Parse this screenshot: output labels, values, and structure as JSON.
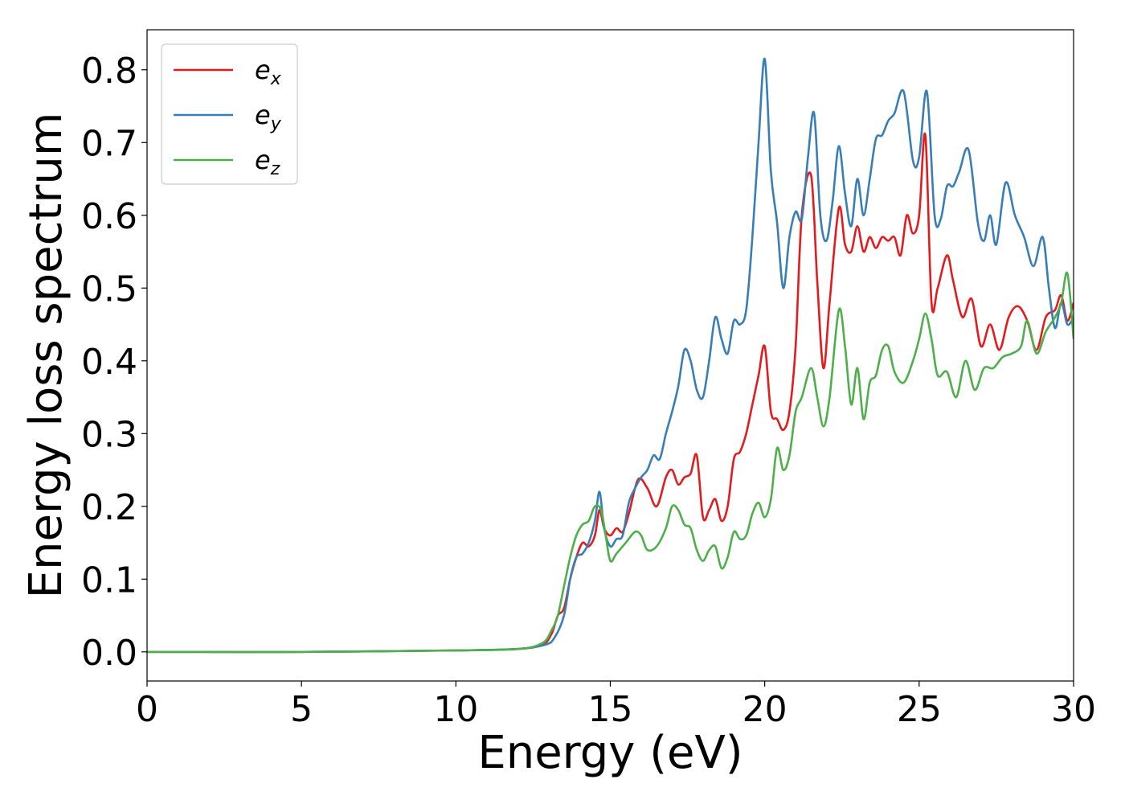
{
  "chart_data": {
    "type": "line",
    "xlabel": "Energy (eV)",
    "ylabel": "Energy loss spectrum",
    "xlim": [
      0,
      30
    ],
    "ylim": [
      -0.04,
      0.855
    ],
    "xticks": [
      0,
      5,
      10,
      15,
      20,
      25,
      30
    ],
    "xtick_labels": [
      "0",
      "5",
      "10",
      "15",
      "20",
      "25",
      "30"
    ],
    "yticks": [
      0.0,
      0.1,
      0.2,
      0.3,
      0.4,
      0.5,
      0.6,
      0.7,
      0.8
    ],
    "ytick_labels": [
      "0.0",
      "0.1",
      "0.2",
      "0.3",
      "0.4",
      "0.5",
      "0.6",
      "0.7",
      "0.8"
    ],
    "grid": false,
    "legend_position": "top-left",
    "series": [
      {
        "name": "e_x",
        "label_base": "e",
        "label_sub": "x",
        "color": "#e41a1c",
        "x": [
          0,
          5,
          10,
          12,
          12.8,
          13.1,
          13.3,
          13.5,
          13.7,
          13.9,
          14.1,
          14.3,
          14.5,
          14.65,
          14.8,
          15.0,
          15.2,
          15.4,
          15.6,
          15.9,
          16.2,
          16.5,
          16.8,
          17.0,
          17.2,
          17.4,
          17.6,
          17.8,
          18.0,
          18.2,
          18.4,
          18.6,
          18.8,
          19.0,
          19.2,
          19.4,
          19.6,
          19.8,
          20.0,
          20.2,
          20.4,
          20.6,
          20.8,
          21.0,
          21.2,
          21.5,
          21.7,
          21.9,
          22.1,
          22.4,
          22.6,
          22.8,
          23.0,
          23.2,
          23.4,
          23.6,
          23.8,
          24.0,
          24.2,
          24.4,
          24.6,
          24.8,
          25.0,
          25.2,
          25.4,
          25.6,
          25.9,
          26.1,
          26.4,
          26.7,
          27.0,
          27.3,
          27.6,
          27.9,
          28.2,
          28.5,
          28.8,
          29.1,
          29.4,
          29.6,
          29.8,
          30.0
        ],
        "y": [
          0.0,
          0.0,
          0.002,
          0.004,
          0.01,
          0.025,
          0.05,
          0.06,
          0.1,
          0.13,
          0.15,
          0.145,
          0.16,
          0.195,
          0.17,
          0.16,
          0.17,
          0.165,
          0.19,
          0.237,
          0.225,
          0.2,
          0.24,
          0.25,
          0.23,
          0.24,
          0.245,
          0.27,
          0.185,
          0.195,
          0.21,
          0.18,
          0.2,
          0.265,
          0.275,
          0.3,
          0.34,
          0.38,
          0.42,
          0.33,
          0.32,
          0.305,
          0.33,
          0.42,
          0.6,
          0.655,
          0.51,
          0.39,
          0.48,
          0.61,
          0.56,
          0.55,
          0.585,
          0.55,
          0.57,
          0.555,
          0.57,
          0.565,
          0.57,
          0.545,
          0.6,
          0.575,
          0.6,
          0.71,
          0.48,
          0.5,
          0.545,
          0.51,
          0.46,
          0.485,
          0.42,
          0.45,
          0.415,
          0.46,
          0.475,
          0.455,
          0.415,
          0.46,
          0.47,
          0.49,
          0.455,
          0.48
        ]
      },
      {
        "name": "e_y",
        "label_base": "e",
        "label_sub": "y",
        "color": "#377eb8",
        "x": [
          0,
          5,
          10,
          12,
          12.9,
          13.2,
          13.5,
          13.7,
          13.9,
          14.1,
          14.3,
          14.5,
          14.65,
          14.8,
          15.0,
          15.2,
          15.4,
          15.6,
          15.8,
          16.0,
          16.2,
          16.4,
          16.6,
          16.8,
          17.0,
          17.2,
          17.4,
          17.6,
          17.8,
          18.0,
          18.2,
          18.4,
          18.6,
          18.8,
          19.0,
          19.2,
          19.4,
          19.6,
          19.8,
          20.0,
          20.2,
          20.4,
          20.6,
          20.8,
          21.0,
          21.2,
          21.4,
          21.6,
          21.8,
          22.0,
          22.2,
          22.4,
          22.6,
          22.8,
          23.0,
          23.2,
          23.4,
          23.6,
          23.8,
          24.0,
          24.2,
          24.5,
          24.8,
          25.0,
          25.25,
          25.5,
          25.7,
          25.9,
          26.1,
          26.3,
          26.6,
          26.9,
          27.1,
          27.3,
          27.5,
          27.8,
          28.1,
          28.4,
          28.7,
          29.0,
          29.2,
          29.4,
          29.6,
          29.8,
          30.0
        ],
        "y": [
          0.0,
          0.0,
          0.002,
          0.004,
          0.01,
          0.02,
          0.05,
          0.1,
          0.13,
          0.135,
          0.15,
          0.18,
          0.22,
          0.17,
          0.145,
          0.155,
          0.16,
          0.205,
          0.225,
          0.24,
          0.25,
          0.27,
          0.265,
          0.3,
          0.33,
          0.365,
          0.415,
          0.4,
          0.36,
          0.35,
          0.4,
          0.46,
          0.43,
          0.41,
          0.455,
          0.45,
          0.47,
          0.57,
          0.7,
          0.815,
          0.66,
          0.59,
          0.5,
          0.57,
          0.605,
          0.595,
          0.68,
          0.74,
          0.6,
          0.565,
          0.62,
          0.695,
          0.63,
          0.585,
          0.65,
          0.6,
          0.65,
          0.705,
          0.71,
          0.73,
          0.74,
          0.77,
          0.675,
          0.68,
          0.77,
          0.6,
          0.595,
          0.64,
          0.64,
          0.66,
          0.69,
          0.59,
          0.565,
          0.6,
          0.56,
          0.645,
          0.6,
          0.57,
          0.53,
          0.57,
          0.5,
          0.445,
          0.48,
          0.45,
          0.46
        ]
      },
      {
        "name": "e_z",
        "label_base": "e",
        "label_sub": "z",
        "color": "#4daf4a",
        "x": [
          0,
          5,
          10,
          12,
          12.8,
          13.1,
          13.3,
          13.5,
          13.7,
          13.9,
          14.1,
          14.3,
          14.5,
          14.7,
          14.85,
          15.0,
          15.2,
          15.5,
          15.8,
          16.0,
          16.2,
          16.5,
          16.8,
          17.0,
          17.2,
          17.4,
          17.6,
          17.8,
          18.0,
          18.2,
          18.4,
          18.6,
          18.8,
          19.0,
          19.2,
          19.4,
          19.6,
          19.8,
          20.0,
          20.2,
          20.4,
          20.6,
          20.8,
          21.0,
          21.2,
          21.5,
          21.7,
          21.9,
          22.1,
          22.4,
          22.6,
          22.8,
          23.0,
          23.2,
          23.4,
          23.6,
          23.8,
          24.0,
          24.2,
          24.5,
          24.8,
          25.0,
          25.2,
          25.4,
          25.6,
          25.9,
          26.2,
          26.5,
          26.8,
          27.1,
          27.4,
          27.7,
          28.0,
          28.3,
          28.5,
          28.8,
          29.1,
          29.4,
          29.6,
          29.8,
          30.0
        ],
        "y": [
          0.0,
          0.0,
          0.002,
          0.004,
          0.012,
          0.03,
          0.05,
          0.09,
          0.13,
          0.16,
          0.175,
          0.18,
          0.2,
          0.195,
          0.16,
          0.125,
          0.135,
          0.15,
          0.165,
          0.16,
          0.14,
          0.145,
          0.17,
          0.2,
          0.195,
          0.175,
          0.17,
          0.14,
          0.125,
          0.14,
          0.145,
          0.115,
          0.13,
          0.165,
          0.155,
          0.16,
          0.19,
          0.205,
          0.185,
          0.21,
          0.28,
          0.25,
          0.27,
          0.33,
          0.35,
          0.39,
          0.35,
          0.31,
          0.35,
          0.47,
          0.42,
          0.34,
          0.39,
          0.32,
          0.37,
          0.38,
          0.415,
          0.42,
          0.385,
          0.37,
          0.4,
          0.43,
          0.465,
          0.43,
          0.38,
          0.385,
          0.35,
          0.4,
          0.36,
          0.39,
          0.39,
          0.405,
          0.41,
          0.42,
          0.455,
          0.41,
          0.44,
          0.46,
          0.48,
          0.52,
          0.43
        ]
      }
    ]
  }
}
